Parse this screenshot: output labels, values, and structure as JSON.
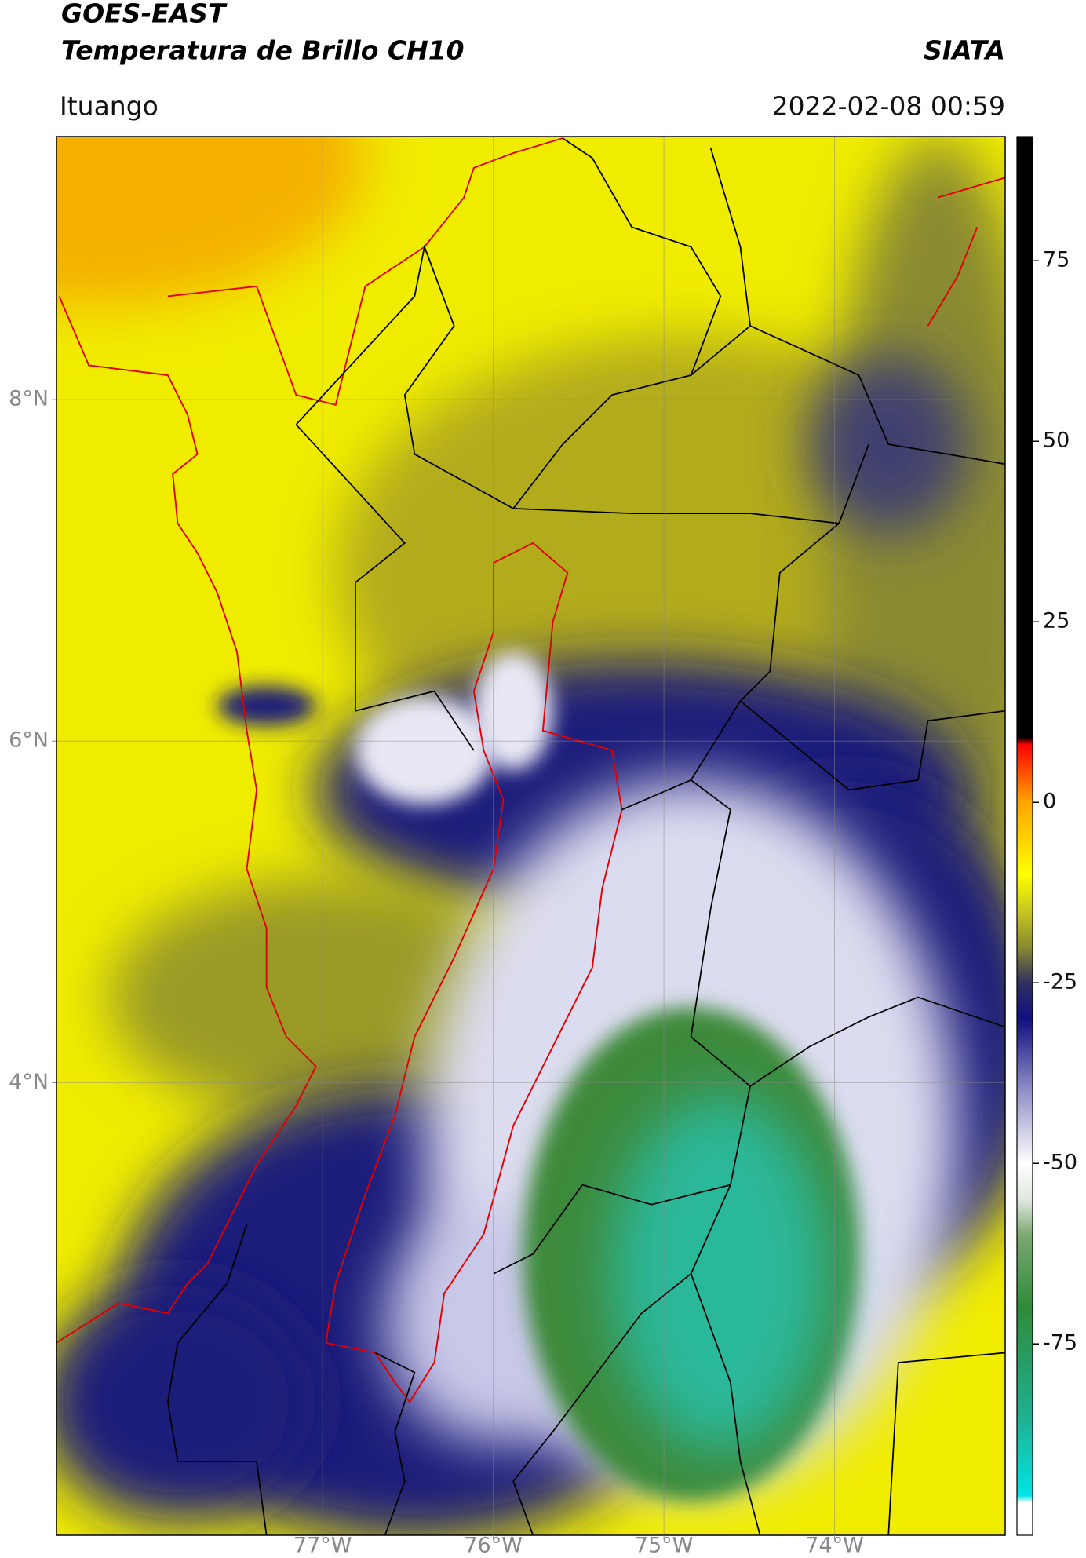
{
  "header": {
    "title": "GOES-EAST",
    "subtitle": "Temperatura de Brillo CH10",
    "source": "SIATA",
    "location": "Ituango",
    "timestamp": "2022-02-08 00:59"
  },
  "map": {
    "xlim": [
      -78.56,
      -73.0
    ],
    "ylim": [
      1.35,
      9.54
    ],
    "xticks": [
      {
        "value": -77,
        "label": "77°W"
      },
      {
        "value": -76,
        "label": "76°W"
      },
      {
        "value": -75,
        "label": "75°W"
      },
      {
        "value": -74,
        "label": "74°W"
      }
    ],
    "yticks": [
      {
        "value": 4,
        "label": "4°N"
      },
      {
        "value": 6,
        "label": "6°N"
      },
      {
        "value": 8,
        "label": "8°N"
      }
    ],
    "grid": true
  },
  "colorbar": {
    "lim": [
      -101.5,
      92.2
    ],
    "ticks": [
      -75,
      -50,
      -25,
      0,
      25,
      50,
      75
    ],
    "stops": [
      {
        "value": -101.5,
        "color": "#ffffff"
      },
      {
        "value": -97,
        "color": "#ffffff"
      },
      {
        "value": -96,
        "color": "#00e5e5"
      },
      {
        "value": -85,
        "color": "#20b090"
      },
      {
        "value": -70,
        "color": "#2e8b3a"
      },
      {
        "value": -60,
        "color": "#7aa870"
      },
      {
        "value": -55,
        "color": "#e0e8e0"
      },
      {
        "value": -50,
        "color": "#ffffff"
      },
      {
        "value": -40,
        "color": "#9090c8"
      },
      {
        "value": -30,
        "color": "#101080"
      },
      {
        "value": -25,
        "color": "#303060"
      },
      {
        "value": -20,
        "color": "#8a8a30"
      },
      {
        "value": -15,
        "color": "#c8c820"
      },
      {
        "value": -10,
        "color": "#ffff00"
      },
      {
        "value": 0,
        "color": "#ffa500"
      },
      {
        "value": 8,
        "color": "#ff0000"
      },
      {
        "value": 9,
        "color": "#000000"
      },
      {
        "value": 92.2,
        "color": "#000000"
      }
    ]
  }
}
